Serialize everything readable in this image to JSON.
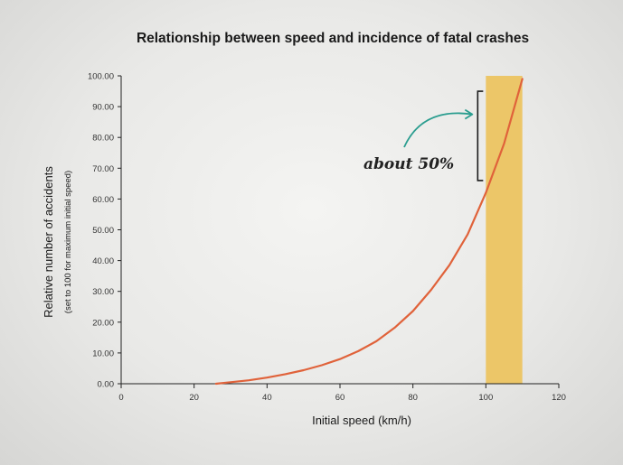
{
  "chart_data": {
    "type": "line",
    "title": "Relationship between speed and incidence of fatal crashes",
    "xlabel": "Initial speed (km/h)",
    "ylabel": "Relative number of accidents",
    "ylabel_sub": "(set to 100 for maximum initial speed)",
    "xlim": [
      0,
      120
    ],
    "ylim": [
      0,
      100
    ],
    "x_ticks": [
      "0",
      "20",
      "40",
      "60",
      "80",
      "100",
      "120"
    ],
    "y_ticks": [
      "0.00",
      "10.00",
      "20.00",
      "30.00",
      "40.00",
      "50.00",
      "60.00",
      "70.00",
      "80.00",
      "90.00",
      "100.00"
    ],
    "grid": false,
    "series": [
      {
        "color": "#e0623a",
        "x": [
          26,
          30,
          35,
          40,
          45,
          50,
          55,
          60,
          65,
          70,
          75,
          80,
          85,
          90,
          95,
          100,
          105,
          110
        ],
        "y": [
          0,
          0.5,
          1.1,
          2.0,
          3.1,
          4.4,
          6.0,
          8.0,
          10.6,
          13.8,
          18.2,
          23.6,
          30.5,
          38.5,
          48.5,
          62,
          78,
          99
        ]
      }
    ],
    "highlight_band": {
      "x_start": 100,
      "x_end": 110,
      "color": "#ecc25a"
    },
    "annotation": {
      "text": "about 50%",
      "bracket_y": [
        66,
        95
      ],
      "arrow_color": "#2a9d8f"
    }
  }
}
